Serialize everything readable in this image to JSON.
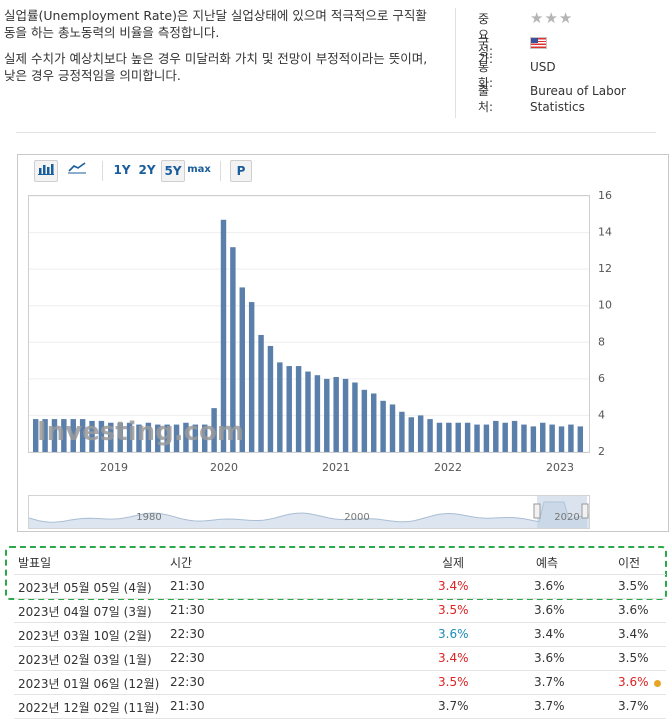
{
  "description": {
    "para1": "실업률(Unemployment Rate)은 지난달 실업상태에 있으며 적극적으로 구직활동을 하는 총노동력의 비율을 측정합니다.",
    "para2": "실제 수치가 예상치보다 높은 경우 미달러화 가치 및 전망이 부정적이라는 뜻이며, 낮은 경우 긍정적임을 의미합니다."
  },
  "meta": {
    "importance_label": "중요성:",
    "importance_stars": "★★★",
    "country_label": "국가:",
    "country_flag": "us-flag",
    "currency_label": "통화:",
    "currency_value": "USD",
    "source_label": "출처:",
    "source_value": "Bureau of Labor Statistics"
  },
  "toolbar": {
    "bar_icon": "bar-chart-icon",
    "line_icon": "line-chart-icon",
    "range_1y": "1Y",
    "range_2y": "2Y",
    "range_5y": "5Y",
    "range_max": "max",
    "p_label": "P",
    "selected": "5Y"
  },
  "chart_data": {
    "type": "bar",
    "ylim": [
      2,
      16
    ],
    "yticks": [
      "2",
      "4",
      "6",
      "8",
      "10",
      "12",
      "14",
      "16"
    ],
    "xticks": [
      "2019",
      "2020",
      "2021",
      "2022",
      "2023"
    ],
    "watermark": "Investing.com",
    "navigator_labels": [
      "1980",
      "2000",
      "2020"
    ],
    "color": "#5a7fab",
    "values": [
      3.8,
      3.8,
      3.8,
      3.8,
      3.8,
      3.8,
      3.7,
      3.7,
      3.6,
      3.6,
      3.6,
      3.5,
      3.6,
      3.5,
      3.5,
      3.5,
      3.6,
      3.5,
      3.5,
      4.4,
      14.7,
      13.2,
      11.0,
      10.2,
      8.4,
      7.8,
      6.9,
      6.7,
      6.7,
      6.4,
      6.2,
      6.0,
      6.1,
      6.0,
      5.8,
      5.4,
      5.2,
      4.8,
      4.6,
      4.2,
      3.9,
      4.0,
      3.8,
      3.6,
      3.6,
      3.6,
      3.6,
      3.5,
      3.5,
      3.7,
      3.6,
      3.7,
      3.5,
      3.4,
      3.6,
      3.5,
      3.4,
      3.5,
      3.4
    ]
  },
  "table": {
    "headers": {
      "date": "발표일",
      "time": "시간",
      "actual": "실제",
      "forecast": "예측",
      "previous": "이전"
    },
    "rows": [
      {
        "date": "2023년 05월 05일 (4월)",
        "time": "21:30",
        "actual": "3.4%",
        "forecast": "3.6%",
        "previous": "3.5%"
      },
      {
        "date": "2023년 04월 07일 (3월)",
        "time": "21:30",
        "actual": "3.5%",
        "forecast": "3.6%",
        "previous": "3.6%"
      },
      {
        "date": "2023년 03월 10일 (2월)",
        "time": "22:30",
        "actual": "3.6%",
        "forecast": "3.4%",
        "previous": "3.4%"
      },
      {
        "date": "2023년 02월 03일 (1월)",
        "time": "22:30",
        "actual": "3.4%",
        "forecast": "3.6%",
        "previous": "3.5%"
      },
      {
        "date": "2023년 01월 06일 (12월)",
        "time": "22:30",
        "actual": "3.5%",
        "forecast": "3.7%",
        "previous": "3.6%"
      },
      {
        "date": "2022년 12월 02일 (11월)",
        "time": "21:30",
        "actual": "3.7%",
        "forecast": "3.7%",
        "previous": "3.7%"
      }
    ]
  }
}
